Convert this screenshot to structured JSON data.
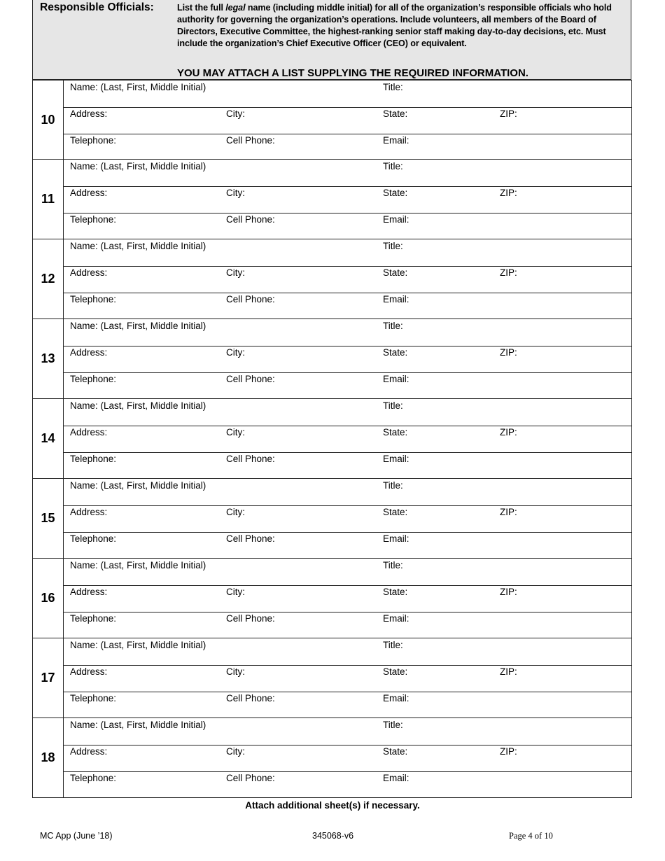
{
  "header": {
    "title": "Responsible Officials:",
    "instructions_pre": "List the full ",
    "instructions_italic": "legal",
    "instructions_post": " name (including middle initial) for all of the organization’s responsible officials who hold authority for governing the organization’s operations. Include volunteers, all members of the Board of Directors,  Executive Committee, the highest-ranking senior staff making day-to-day decisions, etc. Must include the organization’s Chief Executive Officer (CEO) or equivalent.",
    "caps_notice": "YOU MAY ATTACH A LIST SUPPLYING THE REQUIRED INFORMATION."
  },
  "field_labels": [
    [
      "Name: (Last, First, Middle Initial)",
      "",
      "Title:",
      ""
    ],
    [
      "Address:",
      "City:",
      "State:",
      "ZIP:"
    ],
    [
      "Telephone:",
      "Cell Phone:",
      "Email:",
      ""
    ]
  ],
  "rows": [
    "10",
    "11",
    "12",
    "13",
    "14",
    "15",
    "16",
    "17",
    "18"
  ],
  "note": "Attach additional sheet(s) if necessary.",
  "footer": {
    "left": "MC App (June ’18)",
    "center": "345068-v6",
    "right": "Page 4 of 10"
  }
}
